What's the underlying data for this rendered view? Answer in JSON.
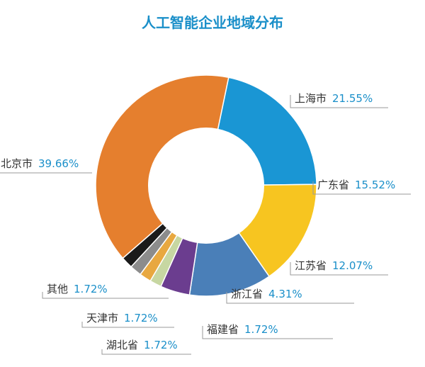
{
  "chart_data": {
    "type": "pie",
    "title": "人工智能企业地域分布",
    "slices": [
      {
        "name": "上海市",
        "value": 21.55,
        "label": "21.55%",
        "color": "#1a96d4"
      },
      {
        "name": "广东省",
        "value": 15.52,
        "label": "15.52%",
        "color": "#f7c520"
      },
      {
        "name": "江苏省",
        "value": 12.07,
        "label": "12.07%",
        "color": "#4a7fb8"
      },
      {
        "name": "浙江省",
        "value": 4.31,
        "label": "4.31%",
        "color": "#6b3d8f"
      },
      {
        "name": "福建省",
        "value": 1.72,
        "label": "1.72%",
        "color": "#c7d7a2"
      },
      {
        "name": "湖北省",
        "value": 1.72,
        "label": "1.72%",
        "color": "#e8a840"
      },
      {
        "name": "天津市",
        "value": 1.72,
        "label": "1.72%",
        "color": "#8c8c8c"
      },
      {
        "name": "其他",
        "value": 1.72,
        "label": "1.72%",
        "color": "#1a1a1a"
      },
      {
        "name": "北京市",
        "value": 39.66,
        "label": "39.66%",
        "color": "#e57f2e"
      }
    ],
    "hole": "white",
    "legend": "none"
  }
}
